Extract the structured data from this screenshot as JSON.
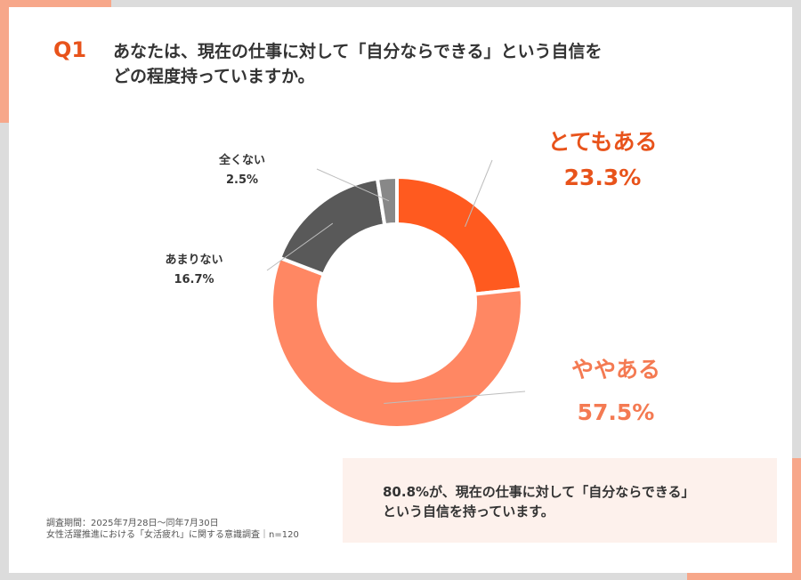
{
  "question": {
    "number": "Q1",
    "line1": "あなたは、現在の仕事に対して「自分ならできる」という自信を",
    "line2": "どの程度持っていますか。"
  },
  "chart_data": {
    "type": "pie",
    "variant": "donut",
    "categories": [
      "とてもある",
      "ややある",
      "あまりない",
      "全くない"
    ],
    "values": [
      23.3,
      57.5,
      16.7,
      2.5
    ],
    "value_labels": [
      "23.3%",
      "57.5%",
      "16.7%",
      "2.5%"
    ],
    "colors": [
      "#ff5a1f",
      "#ff8763",
      "#595959",
      "#888888"
    ],
    "label_colors": [
      "#e8531b",
      "#f47a52",
      "#333333",
      "#333333"
    ]
  },
  "summary": {
    "line1": "80.8%が、現在の仕事に対して「自分ならできる」",
    "line2": "という自信を持っています。"
  },
  "footnote": {
    "line1": "調査期間：2025年7月28日～同年7月30日",
    "line2": "女性活躍推進における「女活疲れ」に関する意識調査｜n=120"
  }
}
